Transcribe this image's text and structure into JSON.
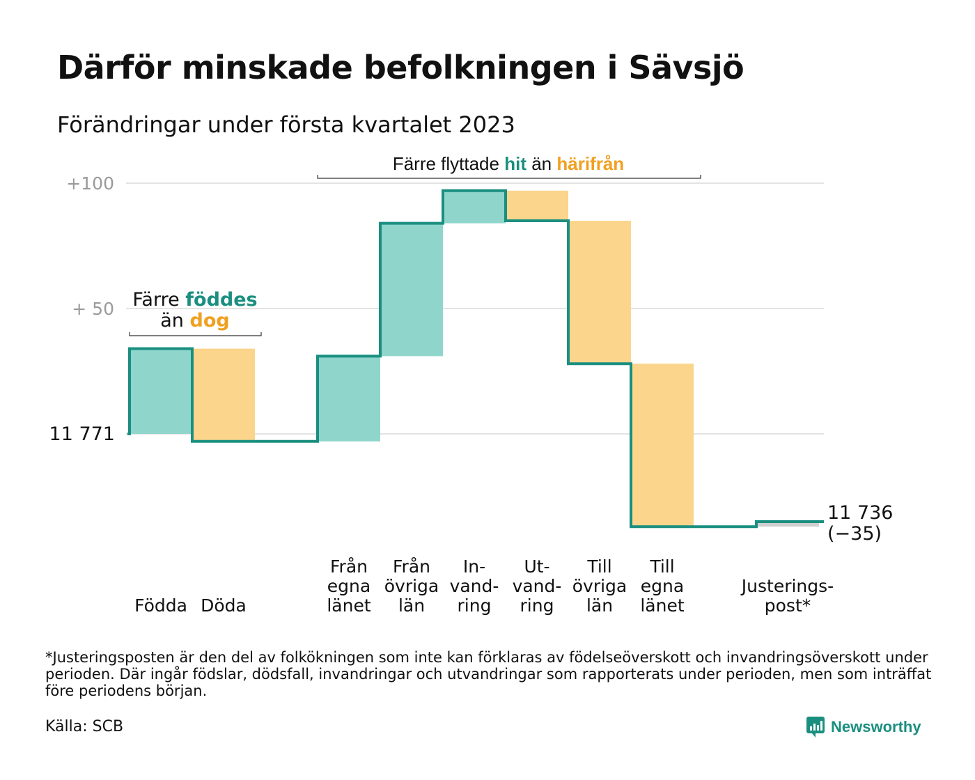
{
  "title": "Därför minskade befolkningen i Sävsjö",
  "subtitle": "Förändringar under första kvartalet 2023",
  "annotations": {
    "births_deaths": {
      "line1_pre": "Färre ",
      "line1_hl": "föddes",
      "line2_pre": "än ",
      "line2_hl": "dog"
    },
    "migration": {
      "pre": "Färre flyttade ",
      "hl1": "hit",
      "mid": " än ",
      "hl2": "härifrån"
    }
  },
  "footnote": "*Justeringsposten är den del av folkökningen som inte kan förklaras av födelseöverskott och invandringsöverskott under perioden. Där ingår födslar, dödsfall, invandringar och utvandringar som rapporterats under perioden, men som inträffat före periodens början.",
  "source": "Källa: SCB",
  "brand": "Newsworthy",
  "colors": {
    "increase": "#8fd5cb",
    "decrease": "#fbd58c",
    "adjustment": "#cfcfcf",
    "step_line": "#1a8f80",
    "grid": "#e3e3e3",
    "tick_label": "#9a9a9a",
    "highlight_teal": "#1a8f80",
    "highlight_orange": "#f0a020"
  },
  "chart_data": {
    "type": "waterfall",
    "title": "Därför minskade befolkningen i Sävsjö",
    "subtitle": "Förändringar under första kvartalet 2023",
    "start_value": 11771,
    "start_label": "11 771",
    "end_value": 11736,
    "end_label": "11 736",
    "end_change_label": "(−35)",
    "yticks": [
      {
        "value": 100,
        "label": "+100"
      },
      {
        "value": 50,
        "label": "+ 50"
      }
    ],
    "ylim": [
      -40,
      101
    ],
    "steps": [
      {
        "label": [
          "Födda"
        ],
        "value": 34
      },
      {
        "label": [
          "Döda"
        ],
        "value": -37
      },
      {
        "label": [
          "Från",
          "egna",
          "länet"
        ],
        "value": 34
      },
      {
        "label": [
          "Från",
          "övriga",
          "län"
        ],
        "value": 53
      },
      {
        "label": [
          "In-",
          "vand-",
          "ring"
        ],
        "value": 13
      },
      {
        "label": [
          "Ut-",
          "vand-",
          "ring"
        ],
        "value": -12
      },
      {
        "label": [
          "Till",
          "övriga",
          "län"
        ],
        "value": -57
      },
      {
        "label": [
          "Till",
          "egna",
          "länet"
        ],
        "value": -65
      },
      {
        "label": [
          "Justerings-",
          "post*"
        ],
        "value": 2
      }
    ]
  }
}
